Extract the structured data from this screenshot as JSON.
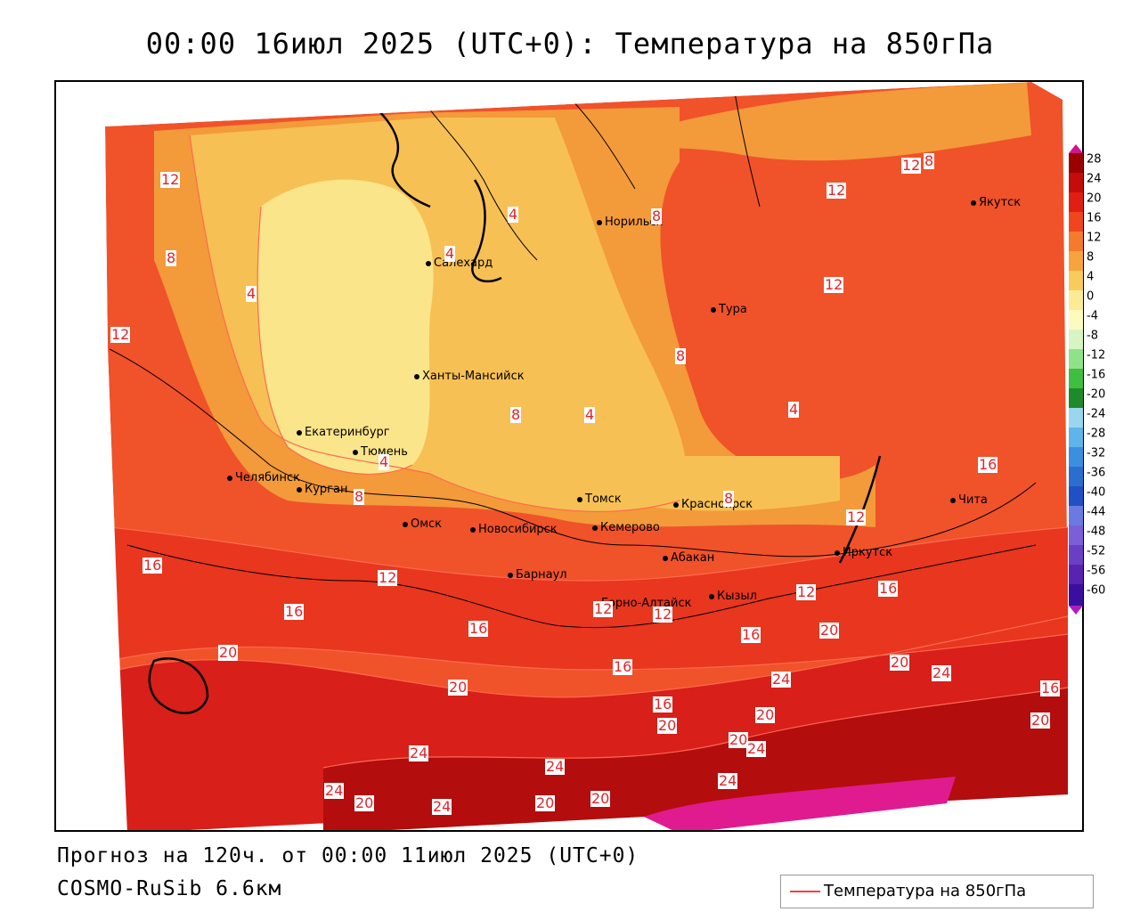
{
  "title": "00:00 16июл 2025 (UTC+0): Температура на 850гПа",
  "forecast_line": "Прогноз на 120ч. от 00:00 11июл 2025 (UTC+0)",
  "model_line": "COSMO-RuSib 6.6км",
  "legend": {
    "label": "Температура на 850гПа",
    "line_color": "#ff3b3b"
  },
  "colorbar": {
    "labels": [
      "28",
      "24",
      "20",
      "16",
      "12",
      "8",
      "4",
      "0",
      "-4",
      "-8",
      "-12",
      "-16",
      "-20",
      "-24",
      "-28",
      "-32",
      "-36",
      "-40",
      "-44",
      "-48",
      "-52",
      "-56",
      "-60"
    ]
  },
  "cities": [
    {
      "name": "Норильск"
    },
    {
      "name": "Якутск"
    },
    {
      "name": "Салехард"
    },
    {
      "name": "Тура"
    },
    {
      "name": "Ханты-Мансийск"
    },
    {
      "name": "Екатеринбург"
    },
    {
      "name": "Тюмень"
    },
    {
      "name": "Челябинск"
    },
    {
      "name": "Курган"
    },
    {
      "name": "Омск"
    },
    {
      "name": "Новосибирск"
    },
    {
      "name": "Томск"
    },
    {
      "name": "Красноярск"
    },
    {
      "name": "Кемерово"
    },
    {
      "name": "Барнаул"
    },
    {
      "name": "Абакан"
    },
    {
      "name": "Горно-Алтайск"
    },
    {
      "name": "Кызыл"
    },
    {
      "name": "Иркутск"
    },
    {
      "name": "Чита"
    }
  ],
  "isotherm_labels": [
    "12",
    "8",
    "4",
    "12",
    "4",
    "4",
    "4",
    "8",
    "12",
    "12",
    "8",
    "12",
    "8",
    "8",
    "4",
    "8",
    "4",
    "8",
    "16",
    "12",
    "12",
    "16",
    "12",
    "16",
    "16",
    "12",
    "12",
    "16",
    "16",
    "20",
    "20",
    "16",
    "20",
    "24",
    "24",
    "20",
    "24",
    "20",
    "24",
    "24",
    "20",
    "24",
    "20",
    "20",
    "24",
    "16",
    "20",
    "20",
    "24",
    "16",
    "20"
  ]
}
